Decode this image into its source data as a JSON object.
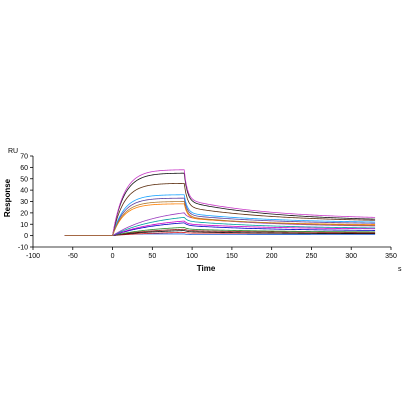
{
  "chart_data": {
    "type": "line",
    "xlabel": "Time",
    "ylabel": "Response",
    "x_unit": "s",
    "y_unit": "RU",
    "xlim": [
      -100,
      350
    ],
    "ylim": [
      -10,
      70
    ],
    "x_ticks": [
      -100,
      -50,
      0,
      50,
      100,
      150,
      200,
      250,
      300,
      350
    ],
    "y_ticks": [
      -10,
      0,
      10,
      20,
      30,
      40,
      50,
      60,
      70
    ],
    "baseline_start": -60,
    "association_start": 0,
    "dissociation_start": 90,
    "end": 330,
    "grid": false,
    "legend": "none",
    "series": [
      {
        "color": "#1f5fd6",
        "plateau": 1.5,
        "end_value": 1.0,
        "style": "fast"
      },
      {
        "color": "#d62020",
        "plateau": 3.5,
        "end_value": 2.0,
        "style": "slow"
      },
      {
        "color": "#0a0a0a",
        "plateau": 5.5,
        "end_value": 1.5,
        "style": "slow"
      },
      {
        "color": "#8c1c1c",
        "plateau": 7.0,
        "end_value": 2.5,
        "style": "slow"
      },
      {
        "color": "#2a8a2a",
        "plateau": 9.0,
        "end_value": 3.0,
        "style": "slow"
      },
      {
        "color": "#0000c0",
        "plateau": 14.0,
        "end_value": 4.0,
        "style": "slow"
      },
      {
        "color": "#cc00cc",
        "plateau": 16.0,
        "end_value": 5.5,
        "style": "slow"
      },
      {
        "color": "#00a0a0",
        "plateau": 20.0,
        "end_value": 6.0,
        "style": "slow"
      },
      {
        "color": "#9b3fbf",
        "plateau": 25.0,
        "end_value": 7.5,
        "style": "slow"
      },
      {
        "color": "#ff7f00",
        "plateau": 28.0,
        "end_value": 9.0,
        "style": "fast"
      },
      {
        "color": "#5a3fa0",
        "plateau": 33.0,
        "end_value": 10.0,
        "style": "fast"
      },
      {
        "color": "#1aa3ff",
        "plateau": 36.0,
        "end_value": 11.0,
        "style": "fast"
      },
      {
        "color": "#5b2d0e",
        "plateau": 46.0,
        "end_value": 12.0,
        "style": "fast"
      },
      {
        "color": "#141414",
        "plateau": 55.0,
        "end_value": 12.5,
        "style": "fast"
      },
      {
        "color": "#c838c8",
        "plateau": 58.0,
        "end_value": 14.0,
        "style": "fast"
      },
      {
        "color": "#b07a30",
        "plateau": 30.0,
        "end_value": 8.0,
        "style": "fast"
      }
    ]
  }
}
